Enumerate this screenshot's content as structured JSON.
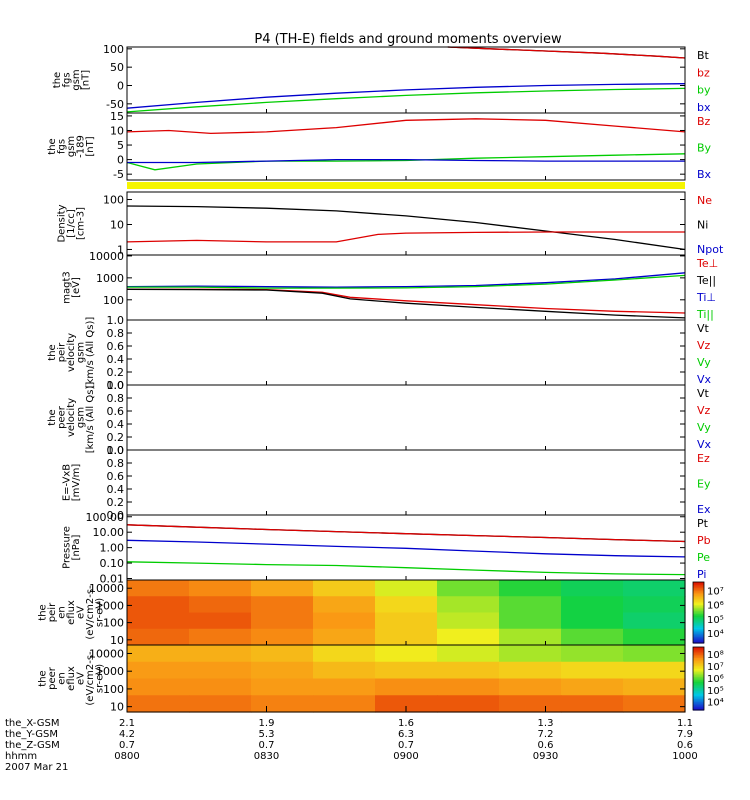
{
  "title": "P4 (TH-E) fields and ground moments overview",
  "x_axis": {
    "ticks": [
      "0800",
      "0830",
      "0900",
      "0930",
      "1000"
    ],
    "rows": [
      {
        "label": "the_X-GSM",
        "values": [
          "2.1",
          "1.9",
          "1.6",
          "1.3",
          "1.1"
        ]
      },
      {
        "label": "the_Y-GSM",
        "values": [
          "4.2",
          "5.3",
          "6.3",
          "7.2",
          "7.9"
        ]
      },
      {
        "label": "the_Z-GSM",
        "values": [
          "0.7",
          "0.7",
          "0.7",
          "0.6",
          "0.6"
        ]
      },
      {
        "label": "hhmm",
        "values": []
      }
    ],
    "date": "2007 Mar 21"
  },
  "chart_data": [
    {
      "type": "line",
      "id": "fgs",
      "ylabel": [
        "the",
        "fgs",
        "gsm",
        "[nT]"
      ],
      "ylim": [
        -75,
        105
      ],
      "yticks": [
        "-50",
        "0",
        "50",
        "100"
      ],
      "ytick_values": [
        -50,
        0,
        50,
        100
      ],
      "legend": [
        {
          "name": "Bt",
          "color": "#000000"
        },
        {
          "name": "bz",
          "color": "#dd0000"
        },
        {
          "name": "by",
          "color": "#00cc00"
        },
        {
          "name": "bx",
          "color": "#0000cc"
        }
      ],
      "series": [
        {
          "name": "Bt",
          "color": "#000000",
          "x": [
            1.15,
            1.3,
            1.5,
            1.7,
            1.9,
            2.0
          ],
          "y": [
            105,
            100,
            94,
            88,
            80,
            75
          ]
        },
        {
          "name": "bz",
          "color": "#dd0000",
          "x": [
            1.15,
            1.3,
            1.5,
            1.7,
            1.9,
            2.0
          ],
          "y": [
            105,
            100,
            94,
            88,
            80,
            75
          ]
        },
        {
          "name": "by",
          "color": "#00cc00",
          "x": [
            0,
            0.25,
            0.5,
            0.75,
            1.0,
            1.25,
            1.5,
            1.75,
            2.0
          ],
          "y": [
            -72,
            -58,
            -46,
            -36,
            -27,
            -20,
            -15,
            -11,
            -8
          ]
        },
        {
          "name": "bx",
          "color": "#0000cc",
          "x": [
            0,
            0.25,
            0.5,
            0.75,
            1.0,
            1.25,
            1.5,
            1.75,
            2.0
          ],
          "y": [
            -62,
            -46,
            -32,
            -21,
            -12,
            -5,
            0,
            3,
            5
          ]
        }
      ]
    },
    {
      "type": "line",
      "id": "fgs189",
      "ylabel": [
        "the",
        "fgs",
        "gsm",
        "-189",
        "[nT]"
      ],
      "ylim": [
        -7,
        16
      ],
      "yticks": [
        "-5",
        "0",
        "5",
        "10",
        "15"
      ],
      "ytick_values": [
        -5,
        0,
        5,
        10,
        15
      ],
      "legend": [
        {
          "name": "Bz",
          "color": "#dd0000"
        },
        {
          "name": "By",
          "color": "#00cc00"
        },
        {
          "name": "Bx",
          "color": "#0000cc"
        }
      ],
      "series": [
        {
          "name": "Bz",
          "color": "#dd0000",
          "x": [
            0,
            0.15,
            0.3,
            0.5,
            0.75,
            1.0,
            1.25,
            1.5,
            1.75,
            2.0
          ],
          "y": [
            9.5,
            10,
            9,
            9.5,
            11,
            13.5,
            14,
            13.5,
            11.5,
            9.5
          ]
        },
        {
          "name": "By",
          "color": "#00cc00",
          "x": [
            0,
            0.1,
            0.25,
            0.5,
            0.75,
            1.0,
            1.25,
            1.5,
            1.75,
            2.0
          ],
          "y": [
            -1,
            -3.5,
            -1.5,
            -0.5,
            -0.5,
            -0.3,
            0.5,
            1,
            1.5,
            2
          ]
        },
        {
          "name": "Bx",
          "color": "#0000cc",
          "x": [
            0,
            0.25,
            0.5,
            0.75,
            1.0,
            1.25,
            1.5,
            1.75,
            2.0
          ],
          "y": [
            -1,
            -1,
            -0.5,
            0,
            0,
            -0.3,
            -0.5,
            -0.5,
            -0.5
          ]
        }
      ]
    },
    {
      "type": "line",
      "id": "density",
      "ylabel": [
        "Density",
        "[1/cc]",
        "[cm-3]"
      ],
      "log": true,
      "ylim": [
        0.6,
        200
      ],
      "yticks": [
        "1",
        "10",
        "100"
      ],
      "ytick_values": [
        1,
        10,
        100
      ],
      "legend": [
        {
          "name": "Ne",
          "color": "#dd0000"
        },
        {
          "name": "Ni",
          "color": "#000000"
        },
        {
          "name": "Npot",
          "color": "#0000cc"
        }
      ],
      "series": [
        {
          "name": "Ni",
          "color": "#000000",
          "x": [
            0,
            0.25,
            0.5,
            0.75,
            1.0,
            1.25,
            1.5,
            1.75,
            2.0
          ],
          "y": [
            55,
            52,
            45,
            35,
            22,
            12,
            5.5,
            2.5,
            1
          ]
        },
        {
          "name": "Ne",
          "color": "#dd0000",
          "x": [
            0,
            0.25,
            0.5,
            0.75,
            0.9,
            1.0,
            1.25,
            1.5,
            1.75,
            2.0
          ],
          "y": [
            2,
            2.3,
            2,
            2,
            4,
            4.5,
            4.8,
            5,
            5,
            5
          ]
        }
      ]
    },
    {
      "type": "line",
      "id": "temp",
      "ylabel": [
        "magt3",
        "[eV]"
      ],
      "log": true,
      "ylim": [
        12,
        11000
      ],
      "yticks": [
        "10000",
        "1000",
        "100"
      ],
      "ytick_values": [
        10000,
        1000,
        100
      ],
      "legend": [
        {
          "name": "Te⊥",
          "color": "#dd0000"
        },
        {
          "name": "Te||",
          "color": "#000000"
        },
        {
          "name": "Ti⊥",
          "color": "#0000cc"
        },
        {
          "name": "Ti||",
          "color": "#00cc00"
        }
      ],
      "series": [
        {
          "name": "Ti⊥",
          "color": "#0000cc",
          "x": [
            0,
            0.25,
            0.5,
            0.75,
            1.0,
            1.25,
            1.5,
            1.75,
            2.0
          ],
          "y": [
            400,
            420,
            400,
            380,
            400,
            450,
            600,
            900,
            1700
          ]
        },
        {
          "name": "Ti||",
          "color": "#00cc00",
          "x": [
            0,
            0.25,
            0.5,
            0.75,
            1.0,
            1.25,
            1.5,
            1.75,
            2.0
          ],
          "y": [
            380,
            380,
            340,
            340,
            350,
            400,
            520,
            800,
            1300
          ]
        },
        {
          "name": "Te⊥",
          "color": "#dd0000",
          "x": [
            0,
            0.25,
            0.5,
            0.7,
            0.8,
            1.0,
            1.25,
            1.5,
            1.75,
            2.0
          ],
          "y": [
            300,
            300,
            290,
            220,
            130,
            90,
            60,
            40,
            30,
            25
          ]
        },
        {
          "name": "Te||",
          "color": "#000000",
          "x": [
            0,
            0.25,
            0.5,
            0.7,
            0.8,
            1.0,
            1.25,
            1.5,
            1.75,
            2.0
          ],
          "y": [
            300,
            290,
            280,
            200,
            110,
            70,
            45,
            30,
            20,
            15
          ]
        }
      ]
    },
    {
      "type": "line",
      "id": "peir_v",
      "ylabel": [
        "the",
        "peir",
        "velocity",
        "gsm",
        "[km/s (All Qs)]"
      ],
      "ylim": [
        0,
        1
      ],
      "yticks": [
        "0.0",
        "0.2",
        "0.4",
        "0.6",
        "0.8",
        "1.0"
      ],
      "ytick_values": [
        0,
        0.2,
        0.4,
        0.6,
        0.8,
        1.0
      ],
      "legend": [
        {
          "name": "Vt",
          "color": "#000000"
        },
        {
          "name": "Vz",
          "color": "#dd0000"
        },
        {
          "name": "Vy",
          "color": "#00cc00"
        },
        {
          "name": "Vx",
          "color": "#0000cc"
        }
      ],
      "series": []
    },
    {
      "type": "line",
      "id": "peer_v",
      "ylabel": [
        "the",
        "peer",
        "velocity",
        "gsm",
        "[km/s (All Qs)]"
      ],
      "ylim": [
        0,
        1
      ],
      "yticks": [
        "0.0",
        "0.2",
        "0.4",
        "0.6",
        "0.8",
        "1.0"
      ],
      "ytick_values": [
        0,
        0.2,
        0.4,
        0.6,
        0.8,
        1.0
      ],
      "legend": [
        {
          "name": "Vt",
          "color": "#000000"
        },
        {
          "name": "Vz",
          "color": "#dd0000"
        },
        {
          "name": "Vy",
          "color": "#00cc00"
        },
        {
          "name": "Vx",
          "color": "#0000cc"
        }
      ],
      "series": []
    },
    {
      "type": "line",
      "id": "efield",
      "ylabel": [
        "E=-VxB",
        "[mV/m]"
      ],
      "ylim": [
        0,
        1
      ],
      "yticks": [
        "0.0",
        "0.2",
        "0.4",
        "0.6",
        "0.8",
        "1.0"
      ],
      "ytick_values": [
        0,
        0.2,
        0.4,
        0.6,
        0.8,
        1.0
      ],
      "legend": [
        {
          "name": "Ez",
          "color": "#dd0000"
        },
        {
          "name": "Ey",
          "color": "#00cc00"
        },
        {
          "name": "Ex",
          "color": "#0000cc"
        }
      ],
      "series": []
    },
    {
      "type": "line",
      "id": "pressure",
      "ylabel": [
        "Pressure",
        "[nPa]"
      ],
      "log": true,
      "ylim": [
        0.008,
        130
      ],
      "yticks": [
        "0.01",
        "0.10",
        "1.00",
        "10.00",
        "100.00"
      ],
      "ytick_values": [
        0.01,
        0.1,
        1,
        10,
        100
      ],
      "legend": [
        {
          "name": "Pt",
          "color": "#000000"
        },
        {
          "name": "Pb",
          "color": "#dd0000"
        },
        {
          "name": "Pe",
          "color": "#00cc00"
        },
        {
          "name": "Pi",
          "color": "#0000cc"
        }
      ],
      "series": [
        {
          "name": "Pt",
          "color": "#000000",
          "x": [
            0,
            0.25,
            0.5,
            0.75,
            1.0,
            1.25,
            1.5,
            1.75,
            2.0
          ],
          "y": [
            30,
            21,
            15,
            11,
            8,
            6,
            4.5,
            3.3,
            2.5
          ]
        },
        {
          "name": "Pb",
          "color": "#dd0000",
          "x": [
            0,
            0.25,
            0.5,
            0.75,
            1.0,
            1.25,
            1.5,
            1.75,
            2.0
          ],
          "y": [
            30,
            21,
            15,
            11,
            8,
            6,
            4.5,
            3.3,
            2.5
          ]
        },
        {
          "name": "Pi",
          "color": "#0000cc",
          "x": [
            0,
            0.25,
            0.5,
            0.75,
            1.0,
            1.25,
            1.5,
            1.75,
            2.0
          ],
          "y": [
            3,
            2.3,
            1.7,
            1.2,
            0.9,
            0.6,
            0.4,
            0.3,
            0.25
          ]
        },
        {
          "name": "Pe",
          "color": "#00cc00",
          "x": [
            0,
            0.25,
            0.5,
            0.75,
            1.0,
            1.25,
            1.5,
            1.75,
            2.0
          ],
          "y": [
            0.12,
            0.1,
            0.08,
            0.07,
            0.05,
            0.035,
            0.025,
            0.02,
            0.018
          ]
        }
      ]
    },
    {
      "type": "heatmap",
      "id": "peir_en",
      "ylabel": [
        "the",
        "peir",
        "en",
        "eflux",
        "eV",
        "(eV/cm2-s-",
        "sr-eV)"
      ],
      "ylim": [
        5,
        30000
      ],
      "yticks": [
        "10",
        "100",
        "1000",
        "10000"
      ],
      "ytick_values": [
        10,
        100,
        1000,
        10000
      ],
      "colorbar": {
        "labels": [
          "10⁷",
          "10⁶",
          "10⁵",
          "10⁴"
        ],
        "exponents": [
          7,
          6,
          5,
          4
        ],
        "range": [
          3.3,
          7.6
        ]
      },
      "cells": [
        [
          7.0,
          6.9,
          6.7,
          6.4,
          6.0,
          5.6,
          5.3,
          5.1,
          5.0
        ],
        [
          7.2,
          7.1,
          7.0,
          6.7,
          6.3,
          5.8,
          5.5,
          5.2,
          5.1
        ],
        [
          7.2,
          7.2,
          7.0,
          6.8,
          6.4,
          5.9,
          5.5,
          5.2,
          5.0
        ],
        [
          7.1,
          7.0,
          6.9,
          6.7,
          6.4,
          6.1,
          5.8,
          5.5,
          5.3
        ]
      ]
    },
    {
      "type": "heatmap",
      "id": "peer_en",
      "ylabel": [
        "the",
        "peer",
        "en",
        "eflux",
        "eV",
        "(eV/cm2-s-",
        "sr-eV)"
      ],
      "ylim": [
        5,
        30000
      ],
      "yticks": [
        "10",
        "100",
        "1000",
        "10000"
      ],
      "ytick_values": [
        10,
        100,
        1000,
        10000
      ],
      "colorbar": {
        "labels": [
          "10⁸",
          "10⁷",
          "10⁶",
          "10⁵",
          "10⁴"
        ],
        "exponents": [
          8,
          7,
          6,
          5,
          4
        ],
        "range": [
          3.3,
          8.6
        ]
      },
      "cells": [
        [
          7.4,
          7.4,
          7.3,
          7.0,
          6.8,
          6.6,
          6.4,
          6.3,
          6.2
        ],
        [
          7.6,
          7.6,
          7.5,
          7.3,
          7.2,
          7.2,
          7.1,
          7.0,
          7.0
        ],
        [
          7.7,
          7.7,
          7.6,
          7.6,
          7.7,
          7.7,
          7.6,
          7.5,
          7.4
        ],
        [
          7.9,
          7.9,
          7.8,
          7.8,
          8.1,
          8.1,
          8.0,
          8.0,
          7.9
        ]
      ]
    }
  ]
}
